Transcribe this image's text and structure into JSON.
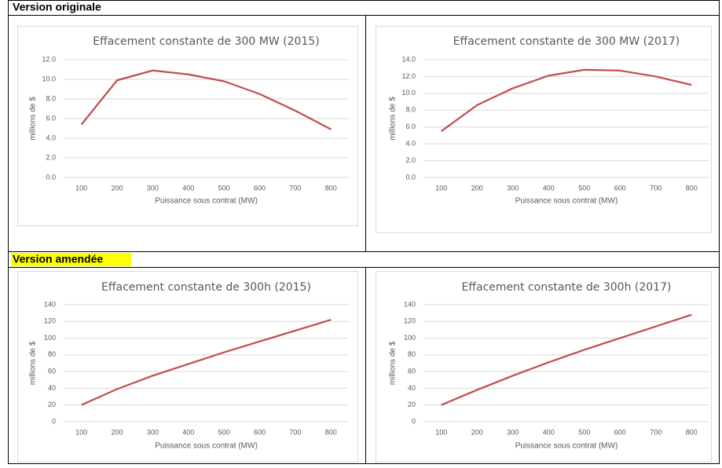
{
  "sections": [
    {
      "title": "Version originale"
    },
    {
      "title": "Version amendée"
    }
  ],
  "chart_data": [
    {
      "type": "line",
      "title": "Effacement constante de 300 MW (2015)",
      "x_label": "Puissance sous contrat (MW)",
      "y_label": "millions de $",
      "categories": [
        "100",
        "200",
        "300",
        "400",
        "500",
        "600",
        "700",
        "800"
      ],
      "series": [
        {
          "color": "#c0504d",
          "values": [
            5.4,
            9.9,
            10.9,
            10.5,
            9.8,
            8.5,
            6.8,
            4.9
          ]
        }
      ],
      "ylim": [
        0,
        12
      ],
      "yticks": [
        {
          "value": 0,
          "label": "0.0"
        },
        {
          "value": 2,
          "label": "2.0"
        },
        {
          "value": 4,
          "label": "4.0"
        },
        {
          "value": 6,
          "label": "6.0"
        },
        {
          "value": 8,
          "label": "8.0"
        },
        {
          "value": 10,
          "label": "10.0"
        },
        {
          "value": 12,
          "label": "12.0"
        }
      ],
      "grid": true
    },
    {
      "type": "line",
      "title": "Effacement constante de 300 MW (2017)",
      "x_label": "Puissance sous contrat (MW)",
      "y_label": "millions de $",
      "categories": [
        "100",
        "200",
        "300",
        "400",
        "500",
        "600",
        "700",
        "800"
      ],
      "series": [
        {
          "color": "#c0504d",
          "values": [
            5.5,
            8.6,
            10.6,
            12.1,
            12.8,
            12.7,
            12.0,
            11.0
          ]
        }
      ],
      "ylim": [
        0,
        14
      ],
      "yticks": [
        {
          "value": 0,
          "label": "0.0"
        },
        {
          "value": 2,
          "label": "2.0"
        },
        {
          "value": 4,
          "label": "4.0"
        },
        {
          "value": 6,
          "label": "6.0"
        },
        {
          "value": 8,
          "label": "8.0"
        },
        {
          "value": 10,
          "label": "10.0"
        },
        {
          "value": 12,
          "label": "12.0"
        },
        {
          "value": 14,
          "label": "14.0"
        }
      ],
      "grid": true
    },
    {
      "type": "line",
      "title": "Effacement constante de 300h (2015)",
      "x_label": "Puissance sous contrat (MW)",
      "y_label": "millions de $",
      "categories": [
        "100",
        "200",
        "300",
        "400",
        "500",
        "600",
        "700",
        "800"
      ],
      "series": [
        {
          "color": "#c0504d",
          "values": [
            20,
            39,
            55,
            69,
            83,
            96,
            109,
            122
          ]
        }
      ],
      "ylim": [
        0,
        140
      ],
      "yticks": [
        0,
        20,
        40,
        60,
        80,
        100,
        120,
        140
      ],
      "grid": true
    },
    {
      "type": "line",
      "title": "Effacement constante de 300h (2017)",
      "x_label": "Puissance sous contrat (MW)",
      "y_label": "millions de $",
      "categories": [
        "100",
        "200",
        "300",
        "400",
        "500",
        "600",
        "700",
        "800"
      ],
      "series": [
        {
          "color": "#c0504d",
          "values": [
            20,
            38,
            55,
            71,
            86,
            100,
            114,
            128
          ]
        }
      ],
      "ylim": [
        0,
        140
      ],
      "yticks": [
        0,
        20,
        40,
        60,
        80,
        100,
        120,
        140
      ],
      "grid": true
    }
  ]
}
